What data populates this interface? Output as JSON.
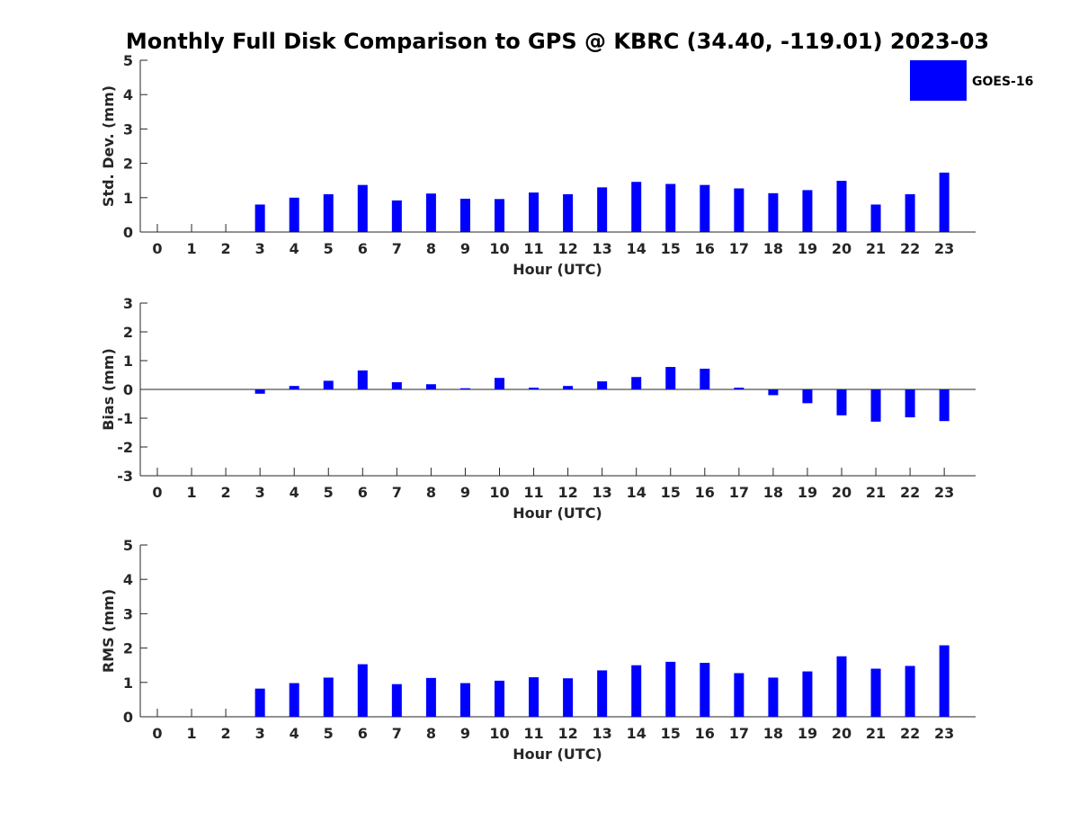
{
  "figure": {
    "title": "Monthly Full Disk Comparison to GPS @ KBRC (34.40, -119.01) 2023-03",
    "legend": {
      "label": "GOES-16",
      "color": "#0000ff",
      "placement": "top-right"
    }
  },
  "chart_data": [
    {
      "type": "bar",
      "xlabel": "Hour (UTC)",
      "ylabel": "Std. Dev. (mm)",
      "ylim": [
        0,
        5
      ],
      "yticks": [
        "0",
        "1",
        "2",
        "3",
        "4",
        "5"
      ],
      "categories": [
        "0",
        "1",
        "2",
        "3",
        "4",
        "5",
        "6",
        "7",
        "8",
        "9",
        "10",
        "11",
        "12",
        "13",
        "14",
        "15",
        "16",
        "17",
        "18",
        "19",
        "20",
        "21",
        "22",
        "23"
      ],
      "series": [
        {
          "name": "GOES-16",
          "color": "#0000ff",
          "values": [
            null,
            null,
            null,
            0.8,
            1.0,
            1.1,
            1.37,
            0.92,
            1.12,
            0.97,
            0.96,
            1.15,
            1.1,
            1.3,
            1.46,
            1.4,
            1.37,
            1.27,
            1.13,
            1.22,
            1.49,
            0.8,
            1.1,
            1.73
          ]
        }
      ]
    },
    {
      "type": "bar",
      "xlabel": "Hour (UTC)",
      "ylabel": "Bias (mm)",
      "ylim": [
        -3,
        3
      ],
      "yticks": [
        "-3",
        "-2",
        "-1",
        "0",
        "1",
        "2",
        "3"
      ],
      "categories": [
        "0",
        "1",
        "2",
        "3",
        "4",
        "5",
        "6",
        "7",
        "8",
        "9",
        "10",
        "11",
        "12",
        "13",
        "14",
        "15",
        "16",
        "17",
        "18",
        "19",
        "20",
        "21",
        "22",
        "23"
      ],
      "series": [
        {
          "name": "GOES-16",
          "color": "#0000ff",
          "values": [
            null,
            null,
            null,
            -0.15,
            0.12,
            0.3,
            0.66,
            0.25,
            0.18,
            0.04,
            0.4,
            0.06,
            0.12,
            0.28,
            0.43,
            0.78,
            0.72,
            0.06,
            -0.2,
            -0.48,
            -0.9,
            -1.12,
            -0.97,
            -1.1
          ]
        }
      ]
    },
    {
      "type": "bar",
      "xlabel": "Hour (UTC)",
      "ylabel": "RMS (mm)",
      "ylim": [
        0,
        5
      ],
      "yticks": [
        "0",
        "1",
        "2",
        "3",
        "4",
        "5"
      ],
      "categories": [
        "0",
        "1",
        "2",
        "3",
        "4",
        "5",
        "6",
        "7",
        "8",
        "9",
        "10",
        "11",
        "12",
        "13",
        "14",
        "15",
        "16",
        "17",
        "18",
        "19",
        "20",
        "21",
        "22",
        "23"
      ],
      "series": [
        {
          "name": "GOES-16",
          "color": "#0000ff",
          "values": [
            null,
            null,
            null,
            0.82,
            0.98,
            1.14,
            1.53,
            0.95,
            1.13,
            0.98,
            1.05,
            1.15,
            1.12,
            1.35,
            1.5,
            1.6,
            1.57,
            1.27,
            1.14,
            1.32,
            1.76,
            1.4,
            1.48,
            2.08
          ]
        }
      ]
    }
  ]
}
